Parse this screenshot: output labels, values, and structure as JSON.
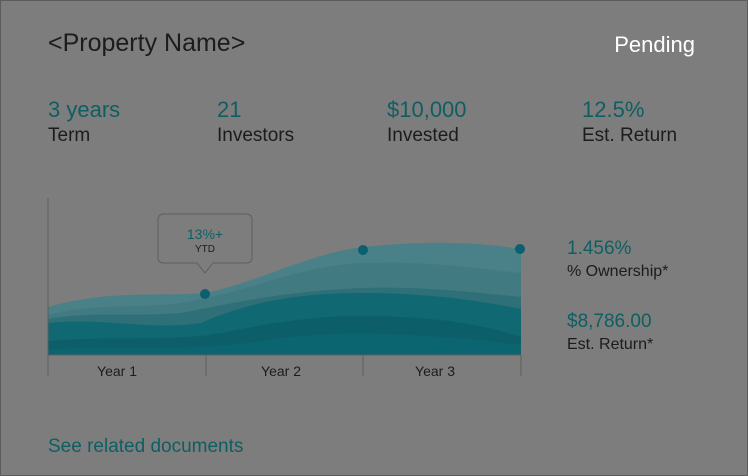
{
  "header": {
    "title": "<Property Name>",
    "status": "Pending"
  },
  "stats": [
    {
      "value": "3 years",
      "label": "Term"
    },
    {
      "value": "21",
      "label": "Investors"
    },
    {
      "value": "$10,000",
      "label": "Invested"
    },
    {
      "value": "12.5%",
      "label": "Est. Return"
    }
  ],
  "chart": {
    "tooltip_value": "13%+",
    "tooltip_label": "YTD",
    "year_labels": [
      "Year 1",
      "Year 2",
      "Year 3"
    ]
  },
  "summary": {
    "ownership_value": "1.456%",
    "ownership_label": "% Ownership*",
    "return_value": "$8,786.00",
    "return_label": "Est. Return*"
  },
  "footer": {
    "documents_link": "See related documents"
  },
  "colors": {
    "background": "#7d7d7d",
    "accent": "#0f5e62",
    "band_light": "#4a8087",
    "band_mid": "#2f6f77",
    "band_dark": "#0c6670",
    "dot": "#0b5f6e"
  }
}
